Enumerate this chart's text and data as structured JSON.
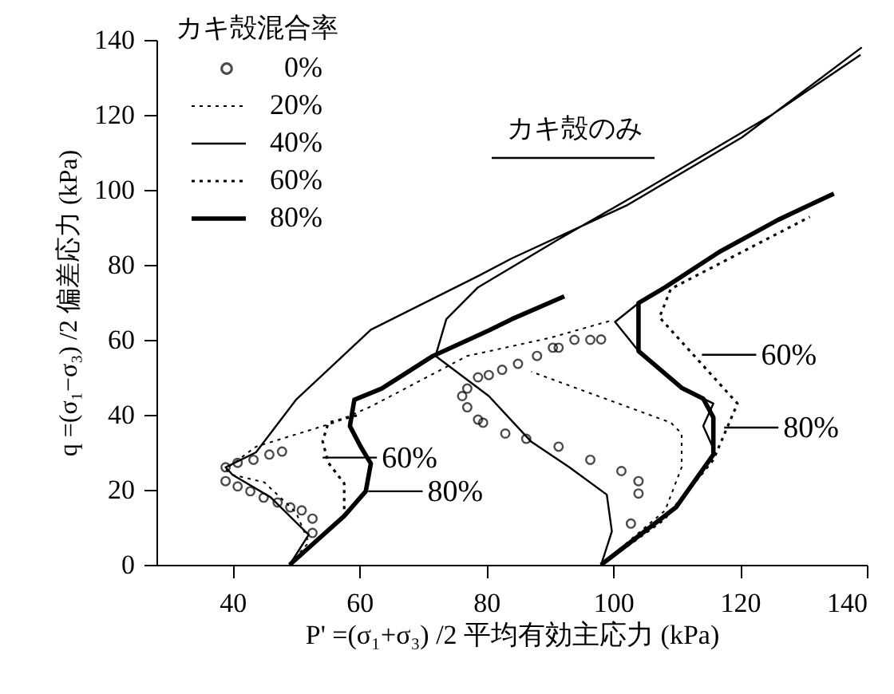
{
  "chart_data": {
    "type": "line",
    "xlabel": "P' =(σ₁+σ₃) /2   平均有効主応力 (kPa)",
    "ylabel": "q =(σ₁−σ₃) /2   偏差応力 (kPa)",
    "legend_title": "カキ殻混合率",
    "legend": "top left",
    "grid": false,
    "xlim": [
      28,
      140
    ],
    "xticks": [
      40,
      60,
      80,
      100,
      120,
      140
    ],
    "ylim": [
      0,
      140
    ],
    "yticks": [
      0,
      20,
      40,
      60,
      80,
      100,
      120,
      140
    ],
    "series": [
      {
        "name": "0%",
        "type": "scatter",
        "marker": "circle",
        "color": "#000000",
        "x": [
          38.9,
          38.9,
          40.8,
          42.8,
          44.9,
          47.1,
          49.1,
          50.9,
          52.6,
          52.6,
          40.8,
          43.3,
          45.8,
          47.8,
          76.2,
          77,
          78.7,
          79.5,
          83,
          86.3,
          77,
          78.7,
          80.4,
          82.5,
          85,
          88,
          90.5,
          91.4,
          93.9,
          96.4,
          98.1,
          91.4,
          96.4,
          101.3,
          104,
          104,
          102.8
        ],
        "values": [
          26,
          22.3,
          20.9,
          19.6,
          17.9,
          16.6,
          15.3,
          14.5,
          12.3,
          8.5,
          27.2,
          28,
          29.4,
          30.2,
          45,
          42,
          38.7,
          37.9,
          35,
          33.6,
          47,
          50,
          50.6,
          52,
          53.6,
          55.7,
          57.9,
          57.9,
          60,
          60,
          60.1,
          31.5,
          28,
          25,
          22.3,
          19,
          11
        ]
      },
      {
        "name": "20%",
        "line_style": "dotted",
        "color": "#000000",
        "x": [
          49,
          52,
          50,
          45,
          40,
          38.9,
          43.7,
          56,
          61.8,
          77,
          90,
          99.4,
          null,
          98.1,
          108.2,
          110.8,
          110.8,
          109.1,
          87.1
        ],
        "values": [
          0,
          6,
          14,
          22,
          24,
          25.5,
          31.5,
          37.9,
          42.2,
          55.7,
          60.5,
          65,
          null,
          0,
          14.5,
          26,
          35,
          37.9,
          51.5
        ]
      },
      {
        "name": "40%",
        "line_style": "solid",
        "color": "#000000",
        "x": [
          49,
          52,
          46,
          40,
          38.9,
          43.7,
          50,
          61.8,
          78.7,
          84,
          102.3,
          120.3,
          139.2,
          null,
          98.1,
          99.8,
          99,
          93.1,
          87.1,
          80.4,
          72,
          73.7,
          78.7,
          91.4,
          105,
          125,
          139,
          null,
          104,
          100.3,
          104,
          110.8,
          115.8,
          114.2,
          115.8
        ],
        "values": [
          0,
          8,
          18,
          24,
          26,
          30,
          44,
          62.7,
          77,
          81.7,
          96,
          114,
          138,
          null,
          0,
          8.9,
          18.7,
          26,
          32.8,
          45,
          55.7,
          65.5,
          74,
          86.8,
          100,
          120,
          136,
          null,
          69.8,
          64.8,
          57,
          47.2,
          43,
          37,
          31
        ]
      },
      {
        "name": "60%",
        "line_style": "dotted",
        "color": "#000000",
        "x": [
          49,
          57.6,
          57.6,
          55.1,
          54.2,
          55.1,
          60,
          null,
          98.1,
          108,
          115.8,
          119.6,
          107.3,
          109.1,
          131
        ],
        "values": [
          0,
          13.2,
          21.7,
          27.2,
          32.9,
          37.9,
          40,
          null,
          0,
          12,
          28,
          43,
          66,
          73.6,
          92.8
        ]
      },
      {
        "name": "80%",
        "line_style": "solid",
        "color": "#000000",
        "x": [
          49,
          57.6,
          61,
          61.8,
          60.2,
          58.5,
          59.2,
          63.5,
          71.6,
          80.4,
          84,
          92.3,
          null,
          98.1,
          109.9,
          115.8,
          115.8,
          114.2,
          110.8,
          104,
          104,
          108.2,
          116.7,
          126,
          134.8
        ],
        "values": [
          0,
          13,
          19.6,
          27,
          31.5,
          37,
          44,
          47,
          55.7,
          62.5,
          65.5,
          71.6,
          null,
          0,
          15.3,
          29.4,
          39.3,
          44.3,
          47.2,
          57,
          69.8,
          74,
          83.4,
          92,
          99
        ]
      }
    ],
    "annotations": [
      "カキ殻のみ",
      {
        "text": "60%",
        "x": 54.2,
        "y": 28.6
      },
      {
        "text": "80%",
        "x": 61.4,
        "y": 19.6
      },
      {
        "text": "60%",
        "x": 114,
        "y": 56
      },
      {
        "text": "80%",
        "x": 117.5,
        "y": 36.6
      }
    ]
  }
}
